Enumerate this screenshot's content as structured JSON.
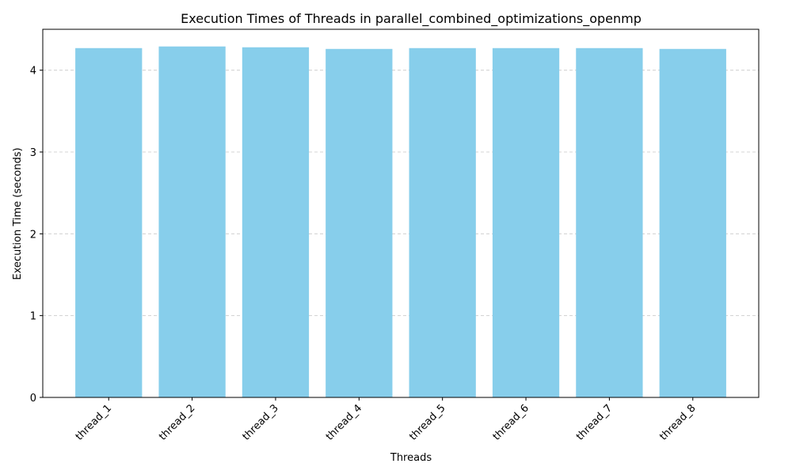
{
  "chart_data": {
    "type": "bar",
    "title": "Execution Times of Threads in parallel_combined_optimizations_openmp",
    "xlabel": "Threads",
    "ylabel": "Execution Time (seconds)",
    "categories": [
      "thread_1",
      "thread_2",
      "thread_3",
      "thread_4",
      "thread_5",
      "thread_6",
      "thread_7",
      "thread_8"
    ],
    "values": [
      4.27,
      4.29,
      4.28,
      4.26,
      4.27,
      4.27,
      4.27,
      4.26
    ],
    "ylim": [
      0,
      4.5
    ],
    "yticks": [
      0,
      1,
      2,
      3,
      4
    ],
    "grid": "y-dashed",
    "bar_color": "#87ceeb",
    "grid_color": "#c8c8c8"
  }
}
